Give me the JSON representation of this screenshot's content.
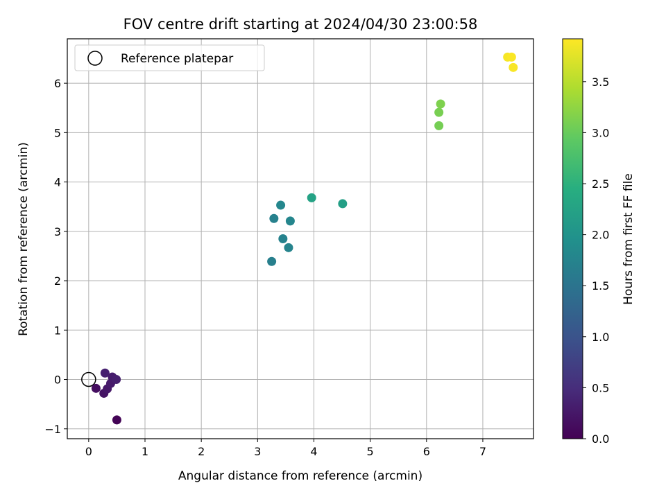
{
  "chart_data": {
    "type": "scatter",
    "title": "FOV centre drift starting at 2024/04/30 23:00:58",
    "xlabel": "Angular distance from reference (arcmin)",
    "ylabel": "Rotation from reference (arcmin)",
    "xlim": [
      -0.38,
      7.9
    ],
    "ylim": [
      -1.2,
      6.9
    ],
    "xticks": [
      0,
      1,
      2,
      3,
      4,
      5,
      6,
      7
    ],
    "yticks": [
      -1,
      0,
      1,
      2,
      3,
      4,
      5,
      6
    ],
    "grid": true,
    "legend": {
      "placement": "top-left",
      "entries": [
        "Reference platepar"
      ]
    },
    "reference_point": {
      "x": 0,
      "y": 0
    },
    "colorbar": {
      "label": "Hours from first FF file",
      "colormap": "viridis",
      "range": [
        0.0,
        3.92
      ],
      "ticks": [
        "0.0",
        "0.5",
        "1.0",
        "1.5",
        "2.0",
        "2.5",
        "3.0",
        "3.5"
      ]
    },
    "points": [
      {
        "x": 0.5,
        "y": -0.82,
        "hours": 0.03
      },
      {
        "x": 0.13,
        "y": -0.18,
        "hours": 0.15
      },
      {
        "x": 0.27,
        "y": -0.28,
        "hours": 0.2
      },
      {
        "x": 0.33,
        "y": -0.19,
        "hours": 0.25
      },
      {
        "x": 0.39,
        "y": -0.08,
        "hours": 0.28
      },
      {
        "x": 0.42,
        "y": 0.05,
        "hours": 0.3
      },
      {
        "x": 0.49,
        "y": 0.0,
        "hours": 0.33
      },
      {
        "x": 0.29,
        "y": 0.13,
        "hours": 0.35
      },
      {
        "x": 3.25,
        "y": 2.39,
        "hours": 1.68
      },
      {
        "x": 3.45,
        "y": 2.85,
        "hours": 1.72
      },
      {
        "x": 3.55,
        "y": 2.67,
        "hours": 1.75
      },
      {
        "x": 3.29,
        "y": 3.26,
        "hours": 1.7
      },
      {
        "x": 3.58,
        "y": 3.21,
        "hours": 1.78
      },
      {
        "x": 3.41,
        "y": 3.53,
        "hours": 1.8
      },
      {
        "x": 3.96,
        "y": 3.68,
        "hours": 2.25
      },
      {
        "x": 4.51,
        "y": 3.56,
        "hours": 2.2
      },
      {
        "x": 6.22,
        "y": 5.14,
        "hours": 3.08
      },
      {
        "x": 6.22,
        "y": 5.41,
        "hours": 3.1
      },
      {
        "x": 6.25,
        "y": 5.58,
        "hours": 3.14
      },
      {
        "x": 7.44,
        "y": 6.53,
        "hours": 3.88
      },
      {
        "x": 7.51,
        "y": 6.53,
        "hours": 3.9
      },
      {
        "x": 7.54,
        "y": 6.32,
        "hours": 3.89
      }
    ]
  }
}
